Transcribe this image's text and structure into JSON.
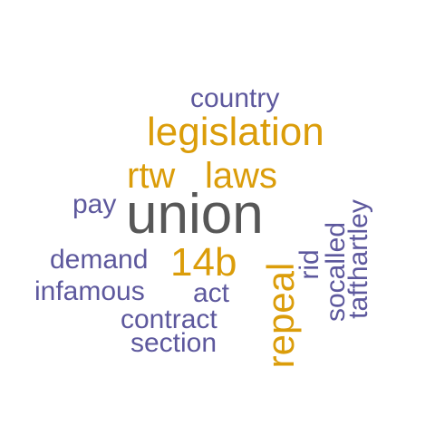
{
  "colors": {
    "primary": "#575757",
    "accent": "#DB9D0A",
    "secondary": "#5D589D"
  },
  "words": {
    "union": "union",
    "legislation": "legislation",
    "rtw": "rtw",
    "laws": "laws",
    "repeal": "repeal",
    "w14b": "14b",
    "country": "country",
    "pay": "pay",
    "demand": "demand",
    "infamous": "infamous",
    "act": "act",
    "contract": "contract",
    "section": "section",
    "rid": "rid",
    "socalled": "socalled",
    "tafthartley": "tafthartley"
  }
}
